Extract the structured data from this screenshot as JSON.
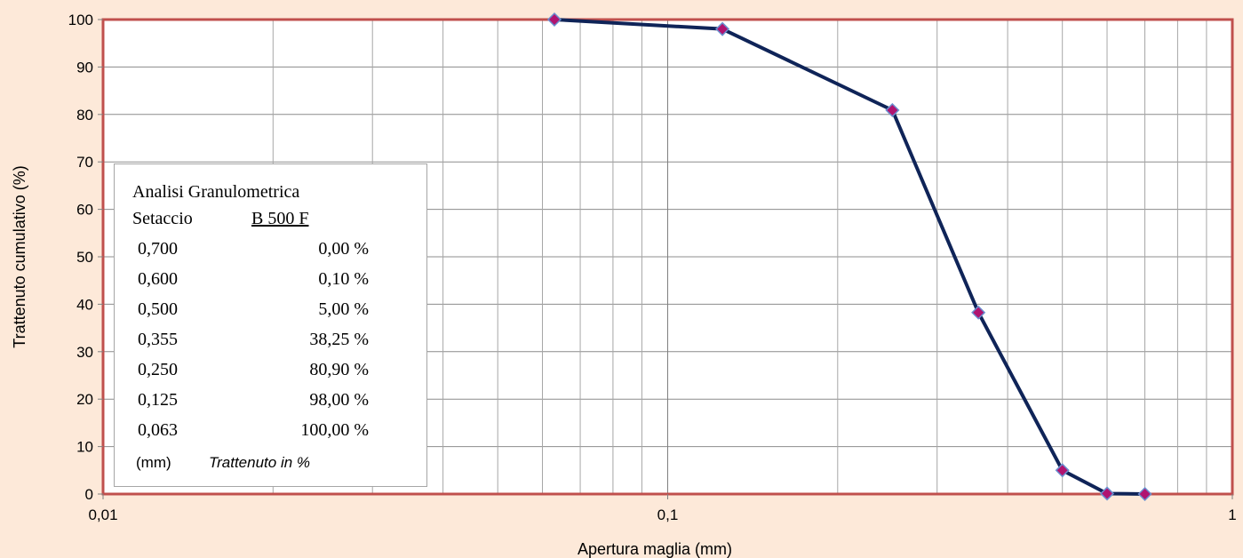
{
  "chart_data": {
    "type": "line",
    "xlabel": "Apertura maglia  (mm)",
    "ylabel": "Trattenuto cumulativo (%)",
    "x_scale": "log",
    "xlim": [
      0.01,
      1
    ],
    "ylim": [
      0,
      100
    ],
    "x_ticks": [
      "0,01",
      "0,1",
      "1"
    ],
    "y_ticks": [
      "0",
      "10",
      "20",
      "30",
      "40",
      "50",
      "60",
      "70",
      "80",
      "90",
      "100"
    ],
    "grid": true,
    "series": [
      {
        "x": [
          0.063,
          0.125,
          0.25,
          0.355,
          0.5,
          0.6,
          0.7
        ],
        "y": [
          100.0,
          98.0,
          80.9,
          38.25,
          5.0,
          0.1,
          0.0
        ],
        "line_color": "#0f2458",
        "marker_color": "#b01470",
        "marker_edge": "#6a8fd0"
      }
    ],
    "plot_border_color": "#c0504d",
    "annotation": {
      "title": "Analisi Granulometrica",
      "header_sieve": "Setaccio",
      "header_sample": "B 500 F",
      "rows": [
        {
          "sieve": "0,700",
          "pct": "0,00 %"
        },
        {
          "sieve": "0,600",
          "pct": "0,10 %"
        },
        {
          "sieve": "0,500",
          "pct": "5,00 %"
        },
        {
          "sieve": "0,355",
          "pct": "38,25 %"
        },
        {
          "sieve": "0,250",
          "pct": "80,90 %"
        },
        {
          "sieve": "0,125",
          "pct": "98,00 %"
        },
        {
          "sieve": "0,063",
          "pct": "100,00 %"
        }
      ],
      "unit": "(mm)",
      "note": "Trattenuto in %"
    }
  }
}
